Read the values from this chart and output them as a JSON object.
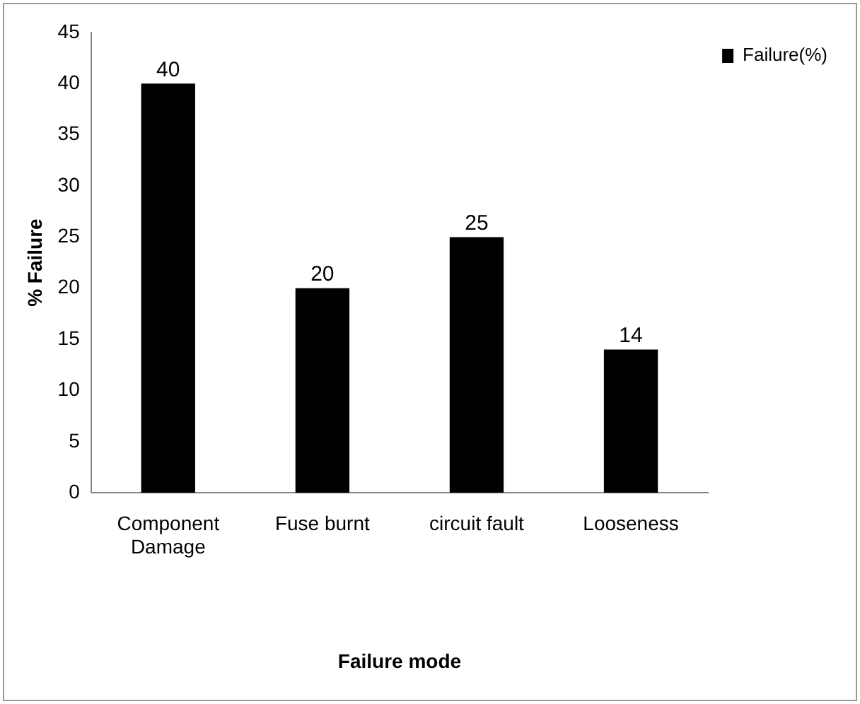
{
  "chart_data": {
    "type": "bar",
    "xlabel": "Failure mode",
    "ylabel": "% Failure",
    "categories": [
      "Component Damage",
      "Fuse burnt",
      "circuit fault",
      "Looseness"
    ],
    "series": [
      {
        "name": "Failure(%)",
        "color": "#000000",
        "values": [
          40,
          20,
          25,
          14
        ]
      }
    ],
    "ylim": [
      0,
      45
    ],
    "yticks": [
      0,
      5,
      10,
      15,
      20,
      25,
      30,
      35,
      40,
      45
    ],
    "grid": false,
    "legend": "top right",
    "data_labels": true
  }
}
